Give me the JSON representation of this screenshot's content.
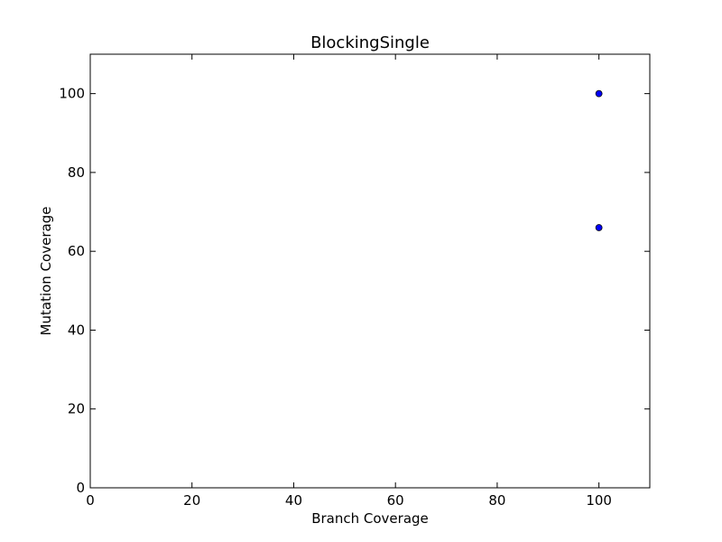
{
  "chart_data": {
    "type": "scatter",
    "title": "BlockingSingle",
    "xlabel": "Branch Coverage",
    "ylabel": "Mutation Coverage",
    "xlim": [
      0,
      110
    ],
    "ylim": [
      0,
      110
    ],
    "xticks": [
      0,
      20,
      40,
      60,
      80,
      100
    ],
    "yticks": [
      0,
      20,
      40,
      60,
      80,
      100
    ],
    "grid": false,
    "series": [
      {
        "marker_color": "#0000ff",
        "points": [
          {
            "x": 100,
            "y": 100
          },
          {
            "x": 100,
            "y": 66
          }
        ]
      }
    ]
  }
}
